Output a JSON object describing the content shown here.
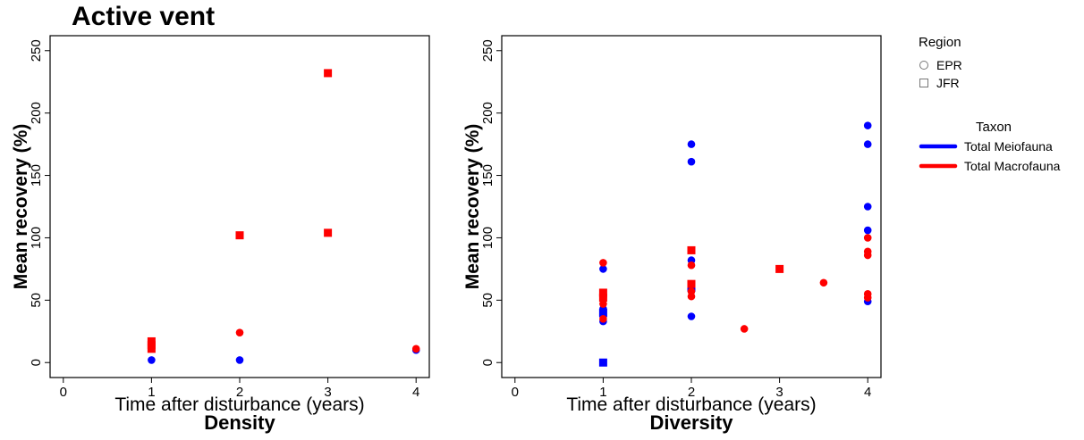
{
  "figure": {
    "title": "Active vent"
  },
  "legend": {
    "region_title": "Region",
    "regions": [
      {
        "label": "EPR",
        "shape": "circle"
      },
      {
        "label": "JFR",
        "shape": "square"
      }
    ],
    "taxon_title": "Taxon",
    "taxa": [
      {
        "label": "Total Meiofauna",
        "color": "#0000ff"
      },
      {
        "label": "Total Macrofauna",
        "color": "#ff0000"
      }
    ]
  },
  "chart_data": [
    {
      "type": "scatter",
      "caption": "Density",
      "xlabel": "Time after disturbance (years)",
      "ylabel": "Mean recovery (%)",
      "xlim": [
        -0.15,
        4.15
      ],
      "ylim": [
        -12,
        262
      ],
      "xticks": [
        0,
        1,
        2,
        3,
        4
      ],
      "yticks": [
        0,
        50,
        100,
        150,
        200,
        250
      ],
      "grid": false,
      "series": [
        {
          "taxon": "Total Meiofauna",
          "region": "EPR",
          "color": "#0000ff",
          "shape": "circle",
          "points": [
            [
              1,
              2
            ],
            [
              2,
              2
            ],
            [
              4,
              10
            ]
          ]
        },
        {
          "taxon": "Total Macrofauna",
          "region": "EPR",
          "color": "#ff0000",
          "shape": "circle",
          "points": [
            [
              2,
              24
            ],
            [
              4,
              11
            ]
          ]
        },
        {
          "taxon": "Total Macrofauna",
          "region": "JFR",
          "color": "#ff0000",
          "shape": "square",
          "points": [
            [
              1,
              11
            ],
            [
              1,
              14
            ],
            [
              1,
              17
            ],
            [
              2,
              102
            ],
            [
              3,
              104
            ],
            [
              3,
              232
            ]
          ]
        }
      ]
    },
    {
      "type": "scatter",
      "caption": "Diversity",
      "xlabel": "Time after disturbance (years)",
      "ylabel": "Mean recovery (%)",
      "xlim": [
        -0.15,
        4.15
      ],
      "ylim": [
        -12,
        262
      ],
      "xticks": [
        0,
        1,
        2,
        3,
        4
      ],
      "yticks": [
        0,
        50,
        100,
        150,
        200,
        250
      ],
      "grid": false,
      "series": [
        {
          "taxon": "Total Meiofauna",
          "region": "EPR",
          "color": "#0000ff",
          "shape": "circle",
          "points": [
            [
              1,
              75
            ],
            [
              1,
              43
            ],
            [
              1,
              37
            ],
            [
              1,
              33
            ],
            [
              2,
              175
            ],
            [
              2,
              161
            ],
            [
              2,
              82
            ],
            [
              2,
              37
            ],
            [
              4,
              190
            ],
            [
              4,
              175
            ],
            [
              4,
              125
            ],
            [
              4,
              106
            ],
            [
              4,
              49
            ]
          ]
        },
        {
          "taxon": "Total Meiofauna",
          "region": "JFR",
          "color": "#0000ff",
          "shape": "square",
          "points": [
            [
              1,
              0
            ],
            [
              1,
              40
            ],
            [
              2,
              60
            ]
          ]
        },
        {
          "taxon": "Total Macrofauna",
          "region": "EPR",
          "color": "#ff0000",
          "shape": "circle",
          "points": [
            [
              1,
              80
            ],
            [
              1,
              52
            ],
            [
              1,
              47
            ],
            [
              1,
              35
            ],
            [
              2,
              78
            ],
            [
              2,
              63
            ],
            [
              2,
              57
            ],
            [
              2,
              53
            ],
            [
              2.6,
              27
            ],
            [
              3.5,
              64
            ],
            [
              4,
              100
            ],
            [
              4,
              89
            ],
            [
              4,
              86
            ],
            [
              4,
              55
            ],
            [
              4,
              52
            ]
          ]
        },
        {
          "taxon": "Total Macrofauna",
          "region": "JFR",
          "color": "#ff0000",
          "shape": "square",
          "points": [
            [
              1,
              56
            ],
            [
              1,
              52
            ],
            [
              2,
              90
            ],
            [
              2,
              63
            ],
            [
              3,
              75
            ]
          ]
        }
      ]
    }
  ]
}
